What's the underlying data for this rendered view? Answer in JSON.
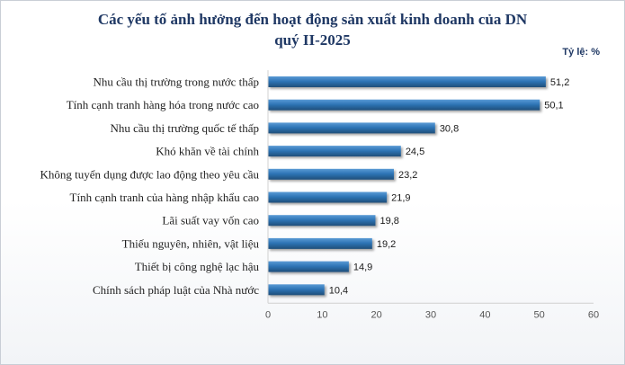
{
  "chart_data": {
    "type": "bar",
    "orientation": "horizontal",
    "title_lines": [
      "Các yếu tố ảnh hưởng đến hoạt động sản xuất kinh doanh của DN",
      "quý II-2025"
    ],
    "unit_label": "Tỷ lệ: %",
    "categories": [
      "Nhu cầu thị trường trong nước thấp",
      "Tính cạnh tranh hàng hóa trong nước cao",
      "Nhu cầu thị trường quốc tế thấp",
      "Khó khăn về tài chính",
      "Không tuyển dụng được lao động theo yêu cầu",
      "Tính cạnh tranh của hàng nhập khẩu cao",
      "Lãi suất vay vốn cao",
      "Thiếu nguyên, nhiên, vật liệu",
      "Thiết bị công nghệ lạc hậu",
      "Chính sách pháp luật của Nhà nước"
    ],
    "values": [
      51.2,
      50.1,
      30.8,
      24.5,
      23.2,
      21.9,
      19.8,
      19.2,
      14.9,
      10.4
    ],
    "value_labels": [
      "51,2",
      "50,1",
      "30,8",
      "24,5",
      "23,2",
      "21,9",
      "19,8",
      "19,2",
      "14,9",
      "10,4"
    ],
    "xlim": [
      0,
      60
    ],
    "xticks": [
      0,
      10,
      20,
      30,
      40,
      50,
      60
    ],
    "xtick_labels": [
      "0",
      "10",
      "20",
      "30",
      "40",
      "50",
      "60"
    ],
    "grid": false,
    "legend": "none",
    "bar_color": "#2e75b6"
  }
}
